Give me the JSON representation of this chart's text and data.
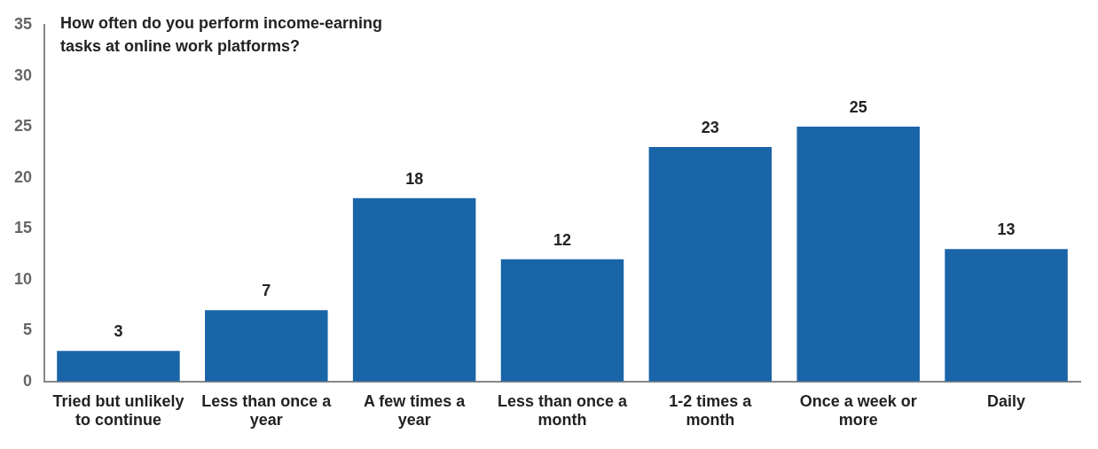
{
  "chart_data": {
    "type": "bar",
    "title": "How often do you perform income-earning tasks at online work platforms?",
    "categories": [
      "Tried but unlikely to continue",
      "Less than once a year",
      "A few times a year",
      "Less than once a month",
      "1-2 times a month",
      "Once a week or more",
      "Daily"
    ],
    "values": [
      3,
      7,
      18,
      12,
      23,
      25,
      13
    ],
    "color": "#1a64a8",
    "ylim": [
      0,
      35
    ],
    "yticks": [
      0,
      5,
      10,
      15,
      20,
      25,
      30,
      35
    ],
    "grid": false,
    "legend": false,
    "data_labels": true
  }
}
